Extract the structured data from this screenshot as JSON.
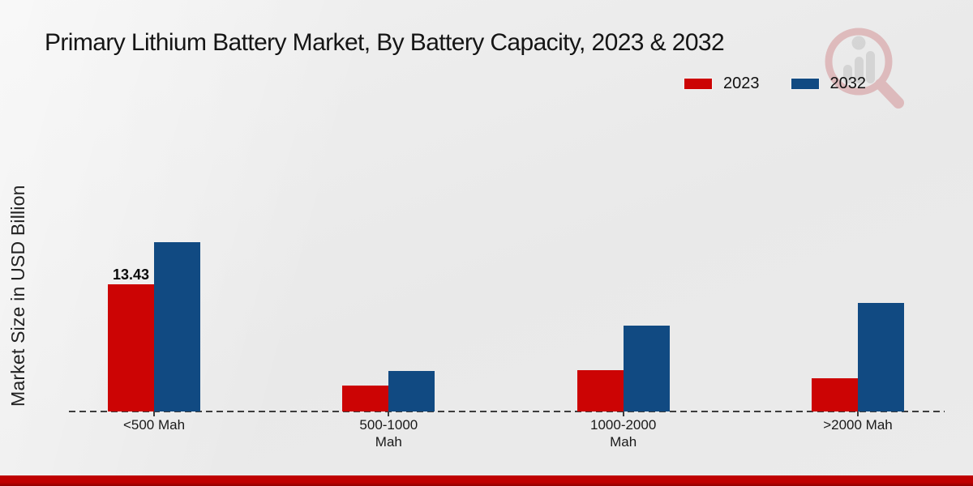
{
  "title": "Primary Lithium Battery Market, By Battery Capacity, 2023 & 2032",
  "ylabel": "Market Size in USD Billion",
  "legend": [
    {
      "label": "2023",
      "color": "#cc0404"
    },
    {
      "label": "2032",
      "color": "#114a82"
    }
  ],
  "colors": {
    "series_2023_red": "#cc0404",
    "series_2032_blue": "#114a82",
    "footer_red": "#bf0101",
    "footer_red_dark": "#8f0101",
    "axis": "#3d3d3d"
  },
  "watermark": {
    "name": "magnifier-bar-chart-logo"
  },
  "chart_data": {
    "type": "bar",
    "title": "Primary Lithium Battery Market, By Battery Capacity, 2023 & 2032",
    "xlabel": "",
    "ylabel": "Market Size in USD Billion",
    "categories": [
      "<500 Mah",
      "500-1000\nMah",
      "1000-2000\nMah",
      ">2000 Mah"
    ],
    "series": [
      {
        "name": "2023",
        "color": "#cc0404",
        "values": [
          13.43,
          2.7,
          4.4,
          3.5
        ],
        "labels": [
          "13.43",
          null,
          null,
          null
        ]
      },
      {
        "name": "2032",
        "color": "#114a82",
        "values": [
          17.9,
          4.3,
          9.1,
          11.5
        ],
        "labels": [
          null,
          null,
          null,
          null
        ]
      }
    ],
    "ylim": [
      0,
      20
    ],
    "grid": false,
    "axis_style": "dashed-baseline-only",
    "legend_position": "top-right"
  }
}
